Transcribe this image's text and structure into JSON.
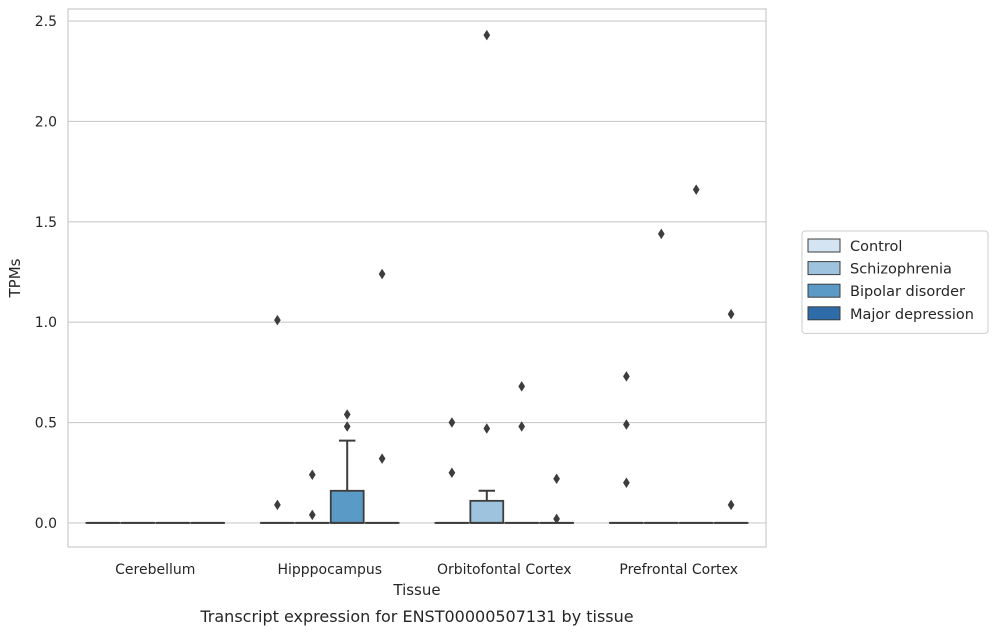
{
  "chart_data": {
    "type": "boxplot",
    "xlabel": "Tissue",
    "ylabel": "TPMs",
    "caption": "Transcript expression for ENST00000507131 by tissue",
    "ylim": [
      -0.12,
      2.56
    ],
    "yticks": [
      0.0,
      0.5,
      1.0,
      1.5,
      2.0,
      2.5
    ],
    "ytick_labels": [
      "0.0",
      "0.5",
      "1.0",
      "1.5",
      "2.0",
      "2.5"
    ],
    "grid": "horizontal",
    "legend_position": "right",
    "categories": [
      "Cerebellum",
      "Hipppocampus",
      "Orbitofontal Cortex",
      "Prefrontal Cortex"
    ],
    "series": [
      {
        "name": "Control",
        "color": "#d4e4f3",
        "boxes": [
          {
            "q1": 0,
            "median": 0,
            "q3": 0,
            "whisker_low": 0,
            "whisker_high": 0,
            "outliers": []
          },
          {
            "q1": 0,
            "median": 0,
            "q3": 0,
            "whisker_low": 0,
            "whisker_high": 0,
            "outliers": [
              0.09,
              1.01
            ]
          },
          {
            "q1": 0,
            "median": 0,
            "q3": 0,
            "whisker_low": 0,
            "whisker_high": 0,
            "outliers": [
              0.25,
              0.5
            ]
          },
          {
            "q1": 0,
            "median": 0,
            "q3": 0,
            "whisker_low": 0,
            "whisker_high": 0,
            "outliers": [
              0.2,
              0.49,
              0.73
            ]
          }
        ]
      },
      {
        "name": "Schizophrenia",
        "color": "#9dc3de",
        "boxes": [
          {
            "q1": 0,
            "median": 0,
            "q3": 0,
            "whisker_low": 0,
            "whisker_high": 0,
            "outliers": []
          },
          {
            "q1": 0,
            "median": 0,
            "q3": 0,
            "whisker_low": 0,
            "whisker_high": 0,
            "outliers": [
              0.04,
              0.24
            ]
          },
          {
            "q1": 0,
            "median": 0,
            "q3": 0.11,
            "whisker_low": 0,
            "whisker_high": 0.16,
            "outliers": [
              0.47,
              2.43
            ]
          },
          {
            "q1": 0,
            "median": 0,
            "q3": 0,
            "whisker_low": 0,
            "whisker_high": 0,
            "outliers": [
              1.44
            ]
          }
        ]
      },
      {
        "name": "Bipolar disorder",
        "color": "#5a9ac6",
        "boxes": [
          {
            "q1": 0,
            "median": 0,
            "q3": 0,
            "whisker_low": 0,
            "whisker_high": 0,
            "outliers": []
          },
          {
            "q1": 0,
            "median": 0,
            "q3": 0.16,
            "whisker_low": 0,
            "whisker_high": 0.41,
            "outliers": [
              0.48,
              0.54
            ]
          },
          {
            "q1": 0,
            "median": 0,
            "q3": 0,
            "whisker_low": 0,
            "whisker_high": 0,
            "outliers": [
              0.48,
              0.68
            ]
          },
          {
            "q1": 0,
            "median": 0,
            "q3": 0,
            "whisker_low": 0,
            "whisker_high": 0,
            "outliers": [
              1.66
            ]
          }
        ]
      },
      {
        "name": "Major depression",
        "color": "#2e6ca9",
        "boxes": [
          {
            "q1": 0,
            "median": 0,
            "q3": 0,
            "whisker_low": 0,
            "whisker_high": 0,
            "outliers": []
          },
          {
            "q1": 0,
            "median": 0,
            "q3": 0,
            "whisker_low": 0,
            "whisker_high": 0,
            "outliers": [
              0.32,
              1.24
            ]
          },
          {
            "q1": 0,
            "median": 0,
            "q3": 0,
            "whisker_low": 0,
            "whisker_high": 0,
            "outliers": [
              0.02,
              0.22
            ]
          },
          {
            "q1": 0,
            "median": 0,
            "q3": 0,
            "whisker_low": 0,
            "whisker_high": 0,
            "outliers": [
              0.09,
              1.04
            ]
          }
        ]
      }
    ]
  }
}
